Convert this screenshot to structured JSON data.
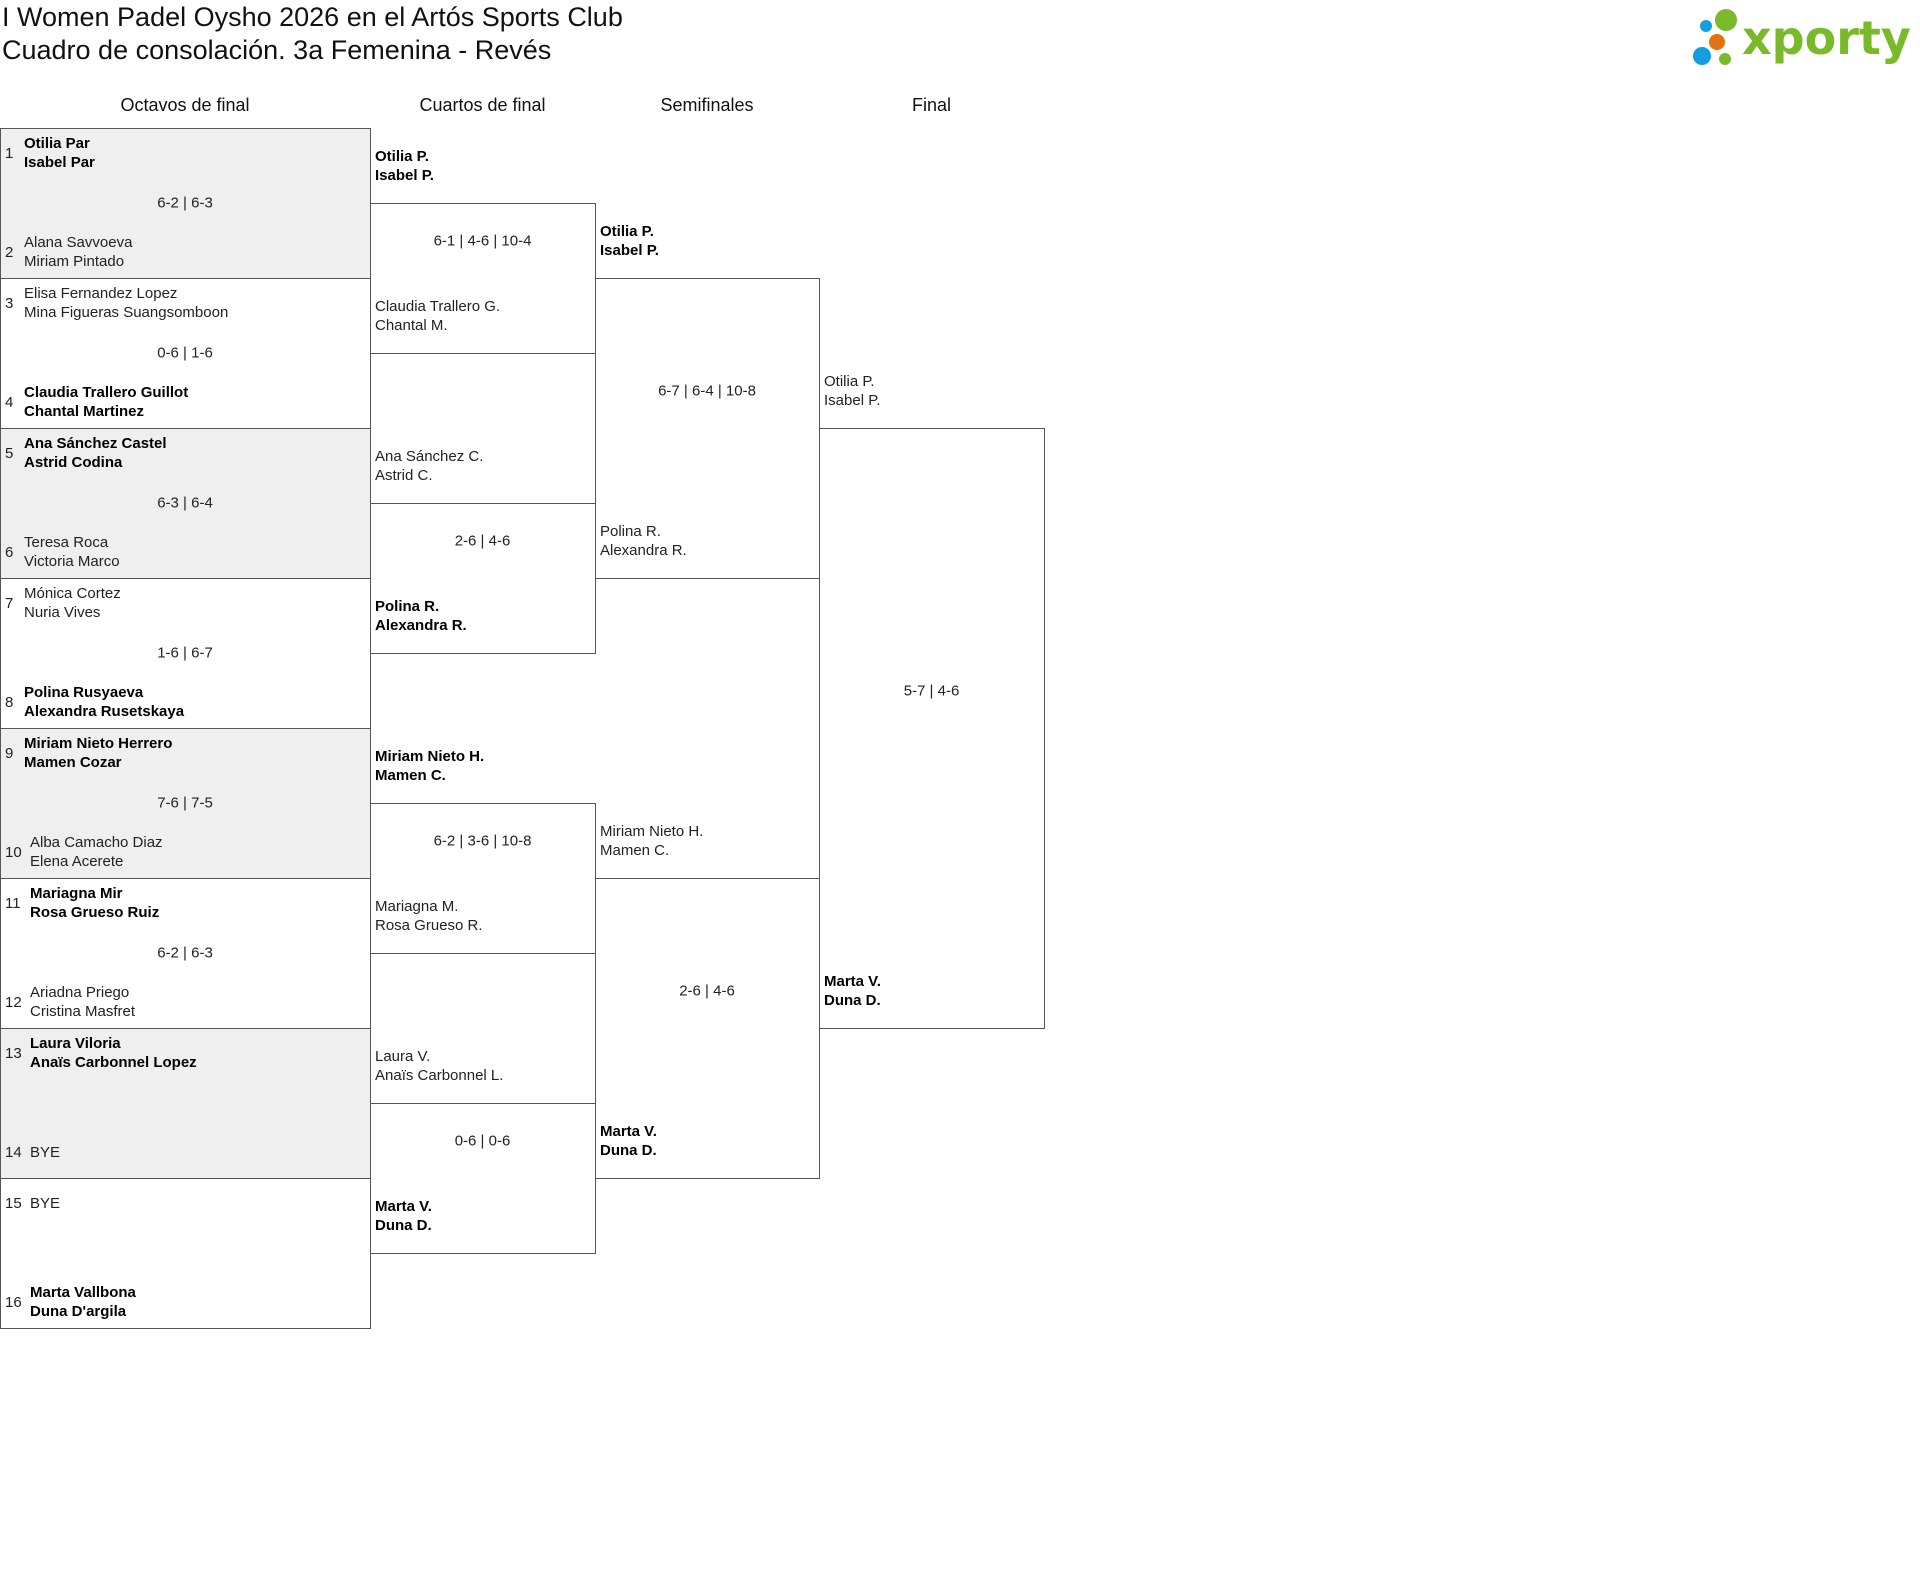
{
  "header": {
    "title": "I Women Padel Oysho 2026 en el Artós Sports Club",
    "subtitle": "Cuadro de consolación. 3a Femenina - Revés"
  },
  "logo": {
    "text": "xporty",
    "colors": {
      "green": "#7ab929",
      "blue": "#139ee0",
      "orange": "#e5700f"
    }
  },
  "colors": {
    "grey_box": "#efefef",
    "border": "#555555"
  },
  "rounds": [
    {
      "label": "Octavos de final",
      "matches": [
        {
          "score": "6-2 | 6-3",
          "teams": [
            {
              "seed": "1",
              "players": [
                "Otilia Par",
                "Isabel Par"
              ],
              "winner": true
            },
            {
              "seed": "2",
              "players": [
                "Alana Savvoeva",
                "Miriam Pintado"
              ],
              "winner": false
            }
          ]
        },
        {
          "score": "0-6 | 1-6",
          "teams": [
            {
              "seed": "3",
              "players": [
                "Elisa Fernandez Lopez",
                "Mina Figueras Suangsomboon"
              ],
              "winner": false
            },
            {
              "seed": "4",
              "players": [
                "Claudia Trallero Guillot",
                "Chantal Martinez"
              ],
              "winner": true
            }
          ]
        },
        {
          "score": "6-3 | 6-4",
          "teams": [
            {
              "seed": "5",
              "players": [
                "Ana Sánchez Castel",
                "Astrid Codina"
              ],
              "winner": true
            },
            {
              "seed": "6",
              "players": [
                "Teresa Roca",
                "Victoria Marco"
              ],
              "winner": false
            }
          ]
        },
        {
          "score": "1-6 | 6-7",
          "teams": [
            {
              "seed": "7",
              "players": [
                "Mónica Cortez",
                "Nuria Vives"
              ],
              "winner": false
            },
            {
              "seed": "8",
              "players": [
                "Polina Rusyaeva",
                "Alexandra Rusetskaya"
              ],
              "winner": true
            }
          ]
        },
        {
          "score": "7-6 | 7-5",
          "teams": [
            {
              "seed": "9",
              "players": [
                "Miriam Nieto Herrero",
                "Mamen Cozar"
              ],
              "winner": true
            },
            {
              "seed": "10",
              "players": [
                "Alba Camacho Diaz",
                "Elena Acerete"
              ],
              "winner": false
            }
          ]
        },
        {
          "score": "6-2 | 6-3",
          "teams": [
            {
              "seed": "11",
              "players": [
                "Mariagna Mir",
                "Rosa Grueso Ruiz"
              ],
              "winner": true
            },
            {
              "seed": "12",
              "players": [
                "Ariadna Priego",
                "Cristina Masfret"
              ],
              "winner": false
            }
          ]
        },
        {
          "score": "",
          "teams": [
            {
              "seed": "13",
              "players": [
                "Laura Viloria",
                "Anaïs Carbonnel Lopez"
              ],
              "winner": true
            },
            {
              "seed": "14",
              "players": [
                "BYE"
              ],
              "winner": false
            }
          ]
        },
        {
          "score": "",
          "teams": [
            {
              "seed": "15",
              "players": [
                "BYE"
              ],
              "winner": false
            },
            {
              "seed": "16",
              "players": [
                "Marta Vallbona",
                "Duna D'argila"
              ],
              "winner": true
            }
          ]
        }
      ]
    },
    {
      "label": "Cuartos de final",
      "matches": [
        {
          "score": "6-1 | 4-6 | 10-4",
          "teams": [
            {
              "players": [
                "Otilia P.",
                "Isabel P."
              ],
              "winner": true
            },
            {
              "players": [
                "Claudia Trallero G.",
                "Chantal M."
              ],
              "winner": false
            }
          ]
        },
        {
          "score": "2-6 | 4-6",
          "teams": [
            {
              "players": [
                "Ana Sánchez C.",
                "Astrid C."
              ],
              "winner": false
            },
            {
              "players": [
                "Polina R.",
                "Alexandra R."
              ],
              "winner": true
            }
          ]
        },
        {
          "score": "6-2 | 3-6 | 10-8",
          "teams": [
            {
              "players": [
                "Miriam Nieto H.",
                "Mamen C."
              ],
              "winner": true
            },
            {
              "players": [
                "Mariagna M.",
                "Rosa Grueso R."
              ],
              "winner": false
            }
          ]
        },
        {
          "score": "0-6 | 0-6",
          "teams": [
            {
              "players": [
                "Laura V.",
                "Anaïs Carbonnel L."
              ],
              "winner": false
            },
            {
              "players": [
                "Marta V.",
                "Duna D."
              ],
              "winner": true
            }
          ]
        }
      ]
    },
    {
      "label": "Semifinales",
      "matches": [
        {
          "score": "6-7 | 6-4 | 10-8",
          "teams": [
            {
              "players": [
                "Otilia P.",
                "Isabel P."
              ],
              "winner": true
            },
            {
              "players": [
                "Polina R.",
                "Alexandra R."
              ],
              "winner": false
            }
          ]
        },
        {
          "score": "2-6 | 4-6",
          "teams": [
            {
              "players": [
                "Miriam Nieto H.",
                "Mamen C."
              ],
              "winner": false
            },
            {
              "players": [
                "Marta V.",
                "Duna D."
              ],
              "winner": true
            }
          ]
        }
      ]
    },
    {
      "label": "Final",
      "matches": [
        {
          "score": "5-7 | 4-6",
          "teams": [
            {
              "players": [
                "Otilia P.",
                "Isabel P."
              ],
              "winner": false
            },
            {
              "players": [
                "Marta V.",
                "Duna D."
              ],
              "winner": true
            }
          ]
        }
      ]
    }
  ]
}
